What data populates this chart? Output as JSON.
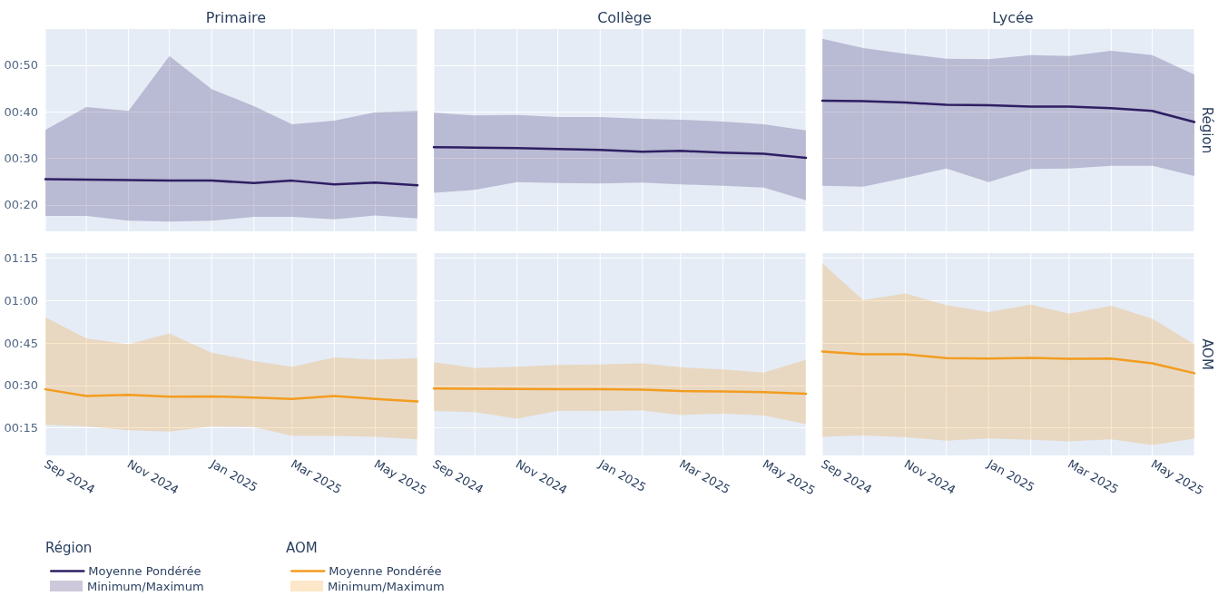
{
  "chart_data": [
    {
      "type": "line",
      "title": "Primaire",
      "annotations": [
        "Minimum/Maximum"
      ],
      "x": [
        "2024-09",
        "2024-10",
        "2024-11",
        "2024-12",
        "2025-01",
        "2025-02",
        "2025-03",
        "2025-04",
        "2025-05",
        "2025-06"
      ],
      "xlim": [
        "2024-09",
        "2025-06"
      ],
      "xticks": [
        {
          "value": "2024-09",
          "label": null
        },
        {
          "value": "2024-10",
          "label": null
        },
        {
          "value": "2024-11",
          "label": null
        },
        {
          "value": "2024-12",
          "label": null
        },
        {
          "value": "2025-01",
          "label": null
        },
        {
          "value": "2025-02",
          "label": null
        },
        {
          "value": "2025-03",
          "label": null
        },
        {
          "value": "2025-04",
          "label": null
        },
        {
          "value": "2025-05",
          "label": null
        },
        {
          "value": "2025-06",
          "label": null
        }
      ],
      "ylim": [
        14.3,
        57.8
      ],
      "yticks": [
        {
          "value": 20,
          "label": "00:20"
        },
        {
          "value": 30,
          "label": "00:30"
        },
        {
          "value": 40,
          "label": "00:40"
        },
        {
          "value": 50,
          "label": "00:50"
        }
      ],
      "grid": true,
      "tick_labels": "y",
      "legend": "bottom left",
      "legend_title": "Région",
      "marker": "none",
      "line_style": "solid",
      "series": [
        {
          "name": "Moyenne Pondérée",
          "color": "#2e1f63",
          "values": [
            25.5,
            25.4,
            25.3,
            25.2,
            25.2,
            24.7,
            25.2,
            24.4,
            24.8,
            24.2
          ],
          "lower": [
            17.6,
            17.6,
            16.6,
            16.4,
            16.6,
            17.4,
            17.4,
            16.9,
            17.7,
            17.1
          ],
          "upper": [
            36.1,
            41.0,
            40.2,
            52.0,
            44.9,
            41.2,
            37.3,
            38.1,
            39.9,
            40.2
          ]
        }
      ]
    },
    {
      "type": "line",
      "title": "Collège",
      "x": [
        "2024-09",
        "2024-10",
        "2024-11",
        "2024-12",
        "2025-01",
        "2025-02",
        "2025-03",
        "2025-04",
        "2025-05",
        "2025-06"
      ],
      "xlim": [
        "2024-09",
        "2025-06"
      ],
      "xticks": [
        {
          "value": "2024-09",
          "label": null
        },
        {
          "value": "2024-10",
          "label": null
        },
        {
          "value": "2024-11",
          "label": null
        },
        {
          "value": "2024-12",
          "label": null
        },
        {
          "value": "2025-01",
          "label": null
        },
        {
          "value": "2025-02",
          "label": null
        },
        {
          "value": "2025-03",
          "label": null
        },
        {
          "value": "2025-04",
          "label": null
        },
        {
          "value": "2025-05",
          "label": null
        },
        {
          "value": "2025-06",
          "label": null
        }
      ],
      "ylim": [
        14.3,
        57.8
      ],
      "yticks": [
        {
          "value": 20,
          "label": null
        },
        {
          "value": 30,
          "label": null
        },
        {
          "value": 40,
          "label": null
        },
        {
          "value": 50,
          "label": null
        }
      ],
      "grid": true,
      "tick_labels": false,
      "marker": "none",
      "line_style": "solid",
      "series": [
        {
          "color": "#2e1f63",
          "values": [
            32.4,
            32.3,
            32.2,
            32.0,
            31.8,
            31.4,
            31.6,
            31.2,
            31.0,
            30.1
          ],
          "lower": [
            22.6,
            23.2,
            24.9,
            24.7,
            24.6,
            24.8,
            24.4,
            24.1,
            23.7,
            21.0
          ],
          "upper": [
            39.8,
            39.2,
            39.3,
            38.9,
            38.9,
            38.5,
            38.3,
            37.9,
            37.3,
            36.0
          ]
        }
      ]
    },
    {
      "type": "line",
      "title": "Lycée",
      "y2label": "Région",
      "x": [
        "2024-09",
        "2024-10",
        "2024-11",
        "2024-12",
        "2025-01",
        "2025-02",
        "2025-03",
        "2025-04",
        "2025-05",
        "2025-06"
      ],
      "xlim": [
        "2024-09",
        "2025-06"
      ],
      "xticks": [
        {
          "value": "2024-09",
          "label": null
        },
        {
          "value": "2024-10",
          "label": null
        },
        {
          "value": "2024-11",
          "label": null
        },
        {
          "value": "2024-12",
          "label": null
        },
        {
          "value": "2025-01",
          "label": null
        },
        {
          "value": "2025-02",
          "label": null
        },
        {
          "value": "2025-03",
          "label": null
        },
        {
          "value": "2025-04",
          "label": null
        },
        {
          "value": "2025-05",
          "label": null
        },
        {
          "value": "2025-06",
          "label": null
        }
      ],
      "ylim": [
        14.3,
        57.8
      ],
      "yticks": [
        {
          "value": 20,
          "label": null
        },
        {
          "value": 30,
          "label": null
        },
        {
          "value": 40,
          "label": null
        },
        {
          "value": 50,
          "label": null
        }
      ],
      "grid": true,
      "tick_labels": false,
      "marker": "none",
      "line_style": "solid",
      "series": [
        {
          "color": "#2e1f63",
          "values": [
            42.4,
            42.3,
            42.0,
            41.5,
            41.4,
            41.1,
            41.1,
            40.8,
            40.2,
            37.8
          ],
          "lower": [
            24.1,
            23.9,
            25.8,
            27.8,
            24.9,
            27.7,
            27.8,
            28.4,
            28.4,
            26.2
          ],
          "upper": [
            55.7,
            53.7,
            52.5,
            51.4,
            51.3,
            52.2,
            52.0,
            53.1,
            52.2,
            48.0
          ]
        }
      ]
    },
    {
      "type": "line",
      "annotations": [
        "Minimum/Maximum"
      ],
      "x": [
        "2024-09",
        "2024-10",
        "2024-11",
        "2024-12",
        "2025-01",
        "2025-02",
        "2025-03",
        "2025-04",
        "2025-05",
        "2025-06"
      ],
      "xlim": [
        "2024-09",
        "2025-06"
      ],
      "xticks": [
        {
          "value": "2024-09",
          "label": "Sep 2024"
        },
        {
          "value": "2024-10",
          "label": null
        },
        {
          "value": "2024-11",
          "label": "Nov 2024"
        },
        {
          "value": "2024-12",
          "label": null
        },
        {
          "value": "2025-01",
          "label": "Jan 2025"
        },
        {
          "value": "2025-02",
          "label": null
        },
        {
          "value": "2025-03",
          "label": "Mar 2025"
        },
        {
          "value": "2025-04",
          "label": null
        },
        {
          "value": "2025-05",
          "label": "May 2025"
        },
        {
          "value": "2025-06",
          "label": null
        }
      ],
      "ylim": [
        5.2,
        76.8
      ],
      "yticks": [
        {
          "value": 15,
          "label": "00:15"
        },
        {
          "value": 30,
          "label": "00:30"
        },
        {
          "value": 45,
          "label": "00:45"
        },
        {
          "value": 60,
          "label": "01:00"
        },
        {
          "value": 75,
          "label": "01:15"
        }
      ],
      "grid": true,
      "legend": "bottom right",
      "legend_title": "AOM",
      "marker": "none",
      "line_style": "solid",
      "series": [
        {
          "name": "Moyenne Pondérée",
          "color": "#f39c1f",
          "values": [
            28.6,
            26.2,
            26.6,
            26.0,
            26.1,
            25.7,
            25.2,
            26.2,
            25.2,
            24.3
          ],
          "lower": [
            16.0,
            15.5,
            14.1,
            13.6,
            15.5,
            15.2,
            12.1,
            12.1,
            11.8,
            10.9
          ],
          "upper": [
            54.1,
            46.6,
            44.5,
            48.4,
            41.6,
            38.6,
            36.6,
            39.9,
            39.1,
            39.6
          ]
        }
      ]
    },
    {
      "type": "line",
      "x": [
        "2024-09",
        "2024-10",
        "2024-11",
        "2024-12",
        "2025-01",
        "2025-02",
        "2025-03",
        "2025-04",
        "2025-05",
        "2025-06"
      ],
      "xlim": [
        "2024-09",
        "2025-06"
      ],
      "xticks": [
        {
          "value": "2024-09",
          "label": "Sep 2024"
        },
        {
          "value": "2024-10",
          "label": null
        },
        {
          "value": "2024-11",
          "label": "Nov 2024"
        },
        {
          "value": "2024-12",
          "label": null
        },
        {
          "value": "2025-01",
          "label": "Jan 2025"
        },
        {
          "value": "2025-02",
          "label": null
        },
        {
          "value": "2025-03",
          "label": "Mar 2025"
        },
        {
          "value": "2025-04",
          "label": null
        },
        {
          "value": "2025-05",
          "label": "May 2025"
        },
        {
          "value": "2025-06",
          "label": null
        }
      ],
      "ylim": [
        5.2,
        76.8
      ],
      "yticks": [
        {
          "value": 15,
          "label": null
        },
        {
          "value": 30,
          "label": null
        },
        {
          "value": 45,
          "label": null
        },
        {
          "value": 60,
          "label": null
        },
        {
          "value": 75,
          "label": null
        }
      ],
      "grid": true,
      "tick_labels": "x",
      "marker": "none",
      "line_style": "solid",
      "series": [
        {
          "color": "#f39c1f",
          "values": [
            28.9,
            28.8,
            28.7,
            28.6,
            28.6,
            28.5,
            28.0,
            27.8,
            27.6,
            27.0
          ],
          "lower": [
            20.9,
            20.5,
            18.2,
            20.9,
            20.9,
            21.1,
            19.5,
            20.0,
            19.3,
            16.3
          ],
          "upper": [
            38.2,
            36.1,
            36.6,
            37.2,
            37.4,
            37.8,
            36.4,
            35.6,
            34.5,
            39.1
          ]
        }
      ]
    },
    {
      "type": "line",
      "y2label": "AOM",
      "x": [
        "2024-09",
        "2024-10",
        "2024-11",
        "2024-12",
        "2025-01",
        "2025-02",
        "2025-03",
        "2025-04",
        "2025-05",
        "2025-06"
      ],
      "xlim": [
        "2024-09",
        "2025-06"
      ],
      "xticks": [
        {
          "value": "2024-09",
          "label": "Sep 2024"
        },
        {
          "value": "2024-10",
          "label": null
        },
        {
          "value": "2024-11",
          "label": "Nov 2024"
        },
        {
          "value": "2024-12",
          "label": null
        },
        {
          "value": "2025-01",
          "label": "Jan 2025"
        },
        {
          "value": "2025-02",
          "label": null
        },
        {
          "value": "2025-03",
          "label": "Mar 2025"
        },
        {
          "value": "2025-04",
          "label": null
        },
        {
          "value": "2025-05",
          "label": "May 2025"
        },
        {
          "value": "2025-06",
          "label": null
        }
      ],
      "ylim": [
        5.2,
        76.8
      ],
      "yticks": [
        {
          "value": 15,
          "label": null
        },
        {
          "value": 30,
          "label": null
        },
        {
          "value": 45,
          "label": null
        },
        {
          "value": 60,
          "label": null
        },
        {
          "value": 75,
          "label": null
        }
      ],
      "grid": true,
      "tick_labels": "x",
      "marker": "none",
      "line_style": "solid",
      "series": [
        {
          "color": "#f39c1f",
          "values": [
            42.0,
            41.0,
            41.0,
            39.6,
            39.5,
            39.7,
            39.4,
            39.5,
            37.8,
            34.3
          ],
          "lower": [
            11.8,
            12.3,
            11.6,
            10.4,
            11.2,
            10.7,
            10.2,
            10.9,
            8.9,
            11.1
          ],
          "upper": [
            73.2,
            60.2,
            62.5,
            58.4,
            55.9,
            58.6,
            55.4,
            58.2,
            53.6,
            44.5
          ]
        }
      ]
    }
  ]
}
